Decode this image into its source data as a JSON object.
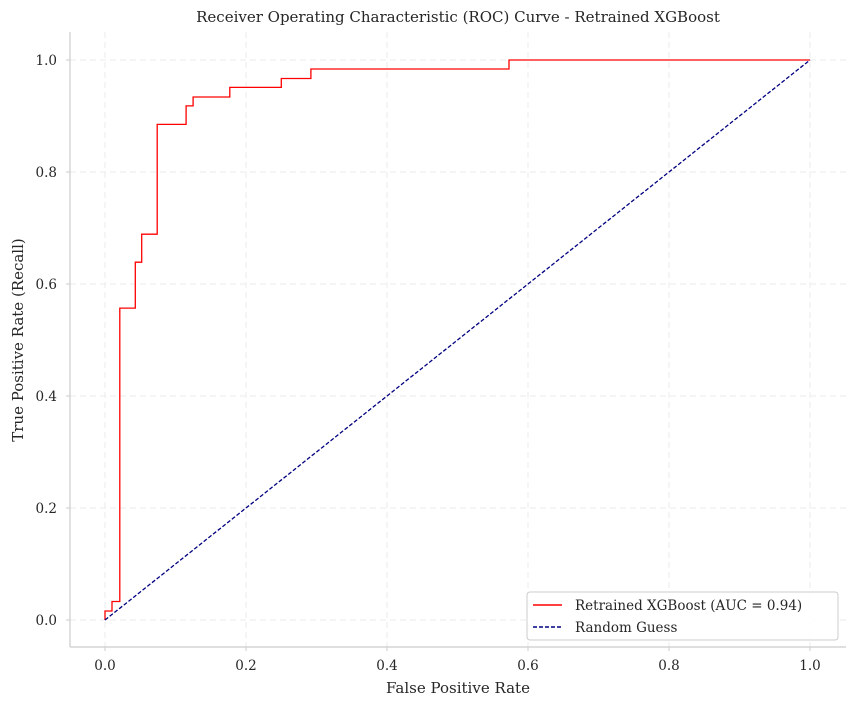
{
  "chart_data": {
    "type": "line",
    "title": "Receiver Operating Characteristic (ROC) Curve - Retrained XGBoost",
    "xlabel": "False Positive Rate",
    "ylabel": "True Positive Rate (Recall)",
    "xlim": [
      -0.05,
      1.05
    ],
    "ylim": [
      -0.05,
      1.05
    ],
    "xticks": [
      "0.0",
      "0.2",
      "0.4",
      "0.6",
      "0.8",
      "1.0"
    ],
    "yticks": [
      "0.0",
      "0.2",
      "0.4",
      "0.6",
      "0.8",
      "1.0"
    ],
    "grid": true,
    "legend_position": "lower right",
    "series": [
      {
        "name": "Retrained XGBoost (AUC = 0.94)",
        "color": "#ff0000",
        "style": "solid",
        "x": [
          0.0,
          0.0,
          0.01,
          0.01,
          0.021,
          0.021,
          0.043,
          0.043,
          0.052,
          0.052,
          0.074,
          0.074,
          0.115,
          0.115,
          0.125,
          0.125,
          0.177,
          0.177,
          0.25,
          0.25,
          0.292,
          0.292,
          0.573,
          0.573,
          1.0
        ],
        "y": [
          0.0,
          0.016,
          0.016,
          0.033,
          0.033,
          0.557,
          0.557,
          0.639,
          0.639,
          0.689,
          0.689,
          0.885,
          0.885,
          0.918,
          0.918,
          0.934,
          0.934,
          0.951,
          0.951,
          0.967,
          0.967,
          0.984,
          0.984,
          1.0,
          1.0
        ]
      },
      {
        "name": "Random Guess",
        "color": "#000080",
        "style": "dashed",
        "x": [
          0.0,
          1.0
        ],
        "y": [
          0.0,
          1.0
        ]
      }
    ],
    "auc": 0.94
  },
  "legend": {
    "items": [
      {
        "label": "Retrained XGBoost (AUC = 0.94)"
      },
      {
        "label": "Random Guess"
      }
    ]
  }
}
